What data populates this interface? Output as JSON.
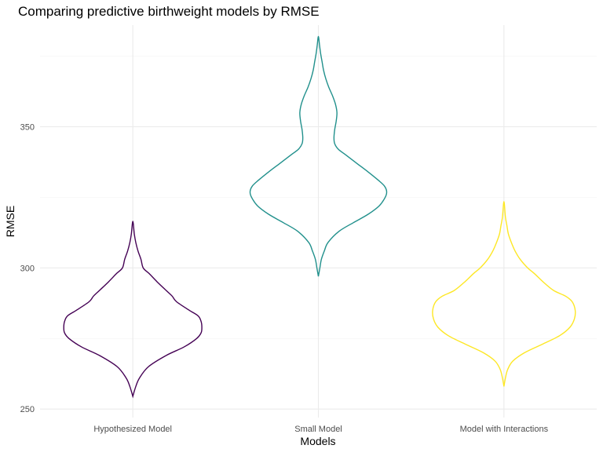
{
  "chart_data": {
    "type": "violin",
    "title": "Comparing predictive birthweight models by RMSE",
    "xlabel": "Models",
    "ylabel": "RMSE",
    "ylim": [
      247,
      386
    ],
    "y_ticks": [
      250,
      300,
      350
    ],
    "y_tick_labels": [
      "250",
      "300",
      "350"
    ],
    "y_minor_ticks": [
      275,
      325,
      375
    ],
    "grid": true,
    "legend": "none",
    "categories": [
      "Hypothesized Model",
      "Small Model",
      "Model with Interactions"
    ],
    "series": [
      {
        "category": "Hypothesized Model",
        "color": "#440154",
        "min": 254.5,
        "max": 316.5,
        "profile": [
          [
            254.5,
            0.0
          ],
          [
            258,
            0.04
          ],
          [
            261,
            0.09
          ],
          [
            265,
            0.21
          ],
          [
            269,
            0.45
          ],
          [
            272,
            0.69
          ],
          [
            275,
            0.86
          ],
          [
            277,
            0.92
          ],
          [
            279,
            0.93
          ],
          [
            281,
            0.92
          ],
          [
            283,
            0.88
          ],
          [
            285,
            0.76
          ],
          [
            288,
            0.59
          ],
          [
            290,
            0.53
          ],
          [
            292,
            0.45
          ],
          [
            295,
            0.33
          ],
          [
            298,
            0.22
          ],
          [
            300,
            0.14
          ],
          [
            303,
            0.11
          ],
          [
            306,
            0.07
          ],
          [
            309,
            0.04
          ],
          [
            312,
            0.02
          ],
          [
            316.5,
            0.0
          ]
        ]
      },
      {
        "category": "Small Model",
        "color": "#21908C",
        "min": 297,
        "max": 382,
        "profile": [
          [
            297,
            0.0
          ],
          [
            300,
            0.02
          ],
          [
            303,
            0.04
          ],
          [
            306,
            0.08
          ],
          [
            309,
            0.13
          ],
          [
            313,
            0.28
          ],
          [
            316,
            0.47
          ],
          [
            319,
            0.67
          ],
          [
            322,
            0.82
          ],
          [
            325,
            0.9
          ],
          [
            327,
            0.92
          ],
          [
            329,
            0.89
          ],
          [
            331,
            0.81
          ],
          [
            334,
            0.67
          ],
          [
            337,
            0.52
          ],
          [
            340,
            0.37
          ],
          [
            342,
            0.27
          ],
          [
            344,
            0.22
          ],
          [
            346,
            0.21
          ],
          [
            349,
            0.22
          ],
          [
            352,
            0.24
          ],
          [
            355,
            0.25
          ],
          [
            358,
            0.23
          ],
          [
            361,
            0.19
          ],
          [
            364,
            0.14
          ],
          [
            367,
            0.1
          ],
          [
            370,
            0.07
          ],
          [
            373,
            0.05
          ],
          [
            376,
            0.03
          ],
          [
            379,
            0.015
          ],
          [
            382,
            0.0
          ]
        ]
      },
      {
        "category": "Model with Interactions",
        "color": "#FDE725",
        "min": 258,
        "max": 323.5,
        "profile": [
          [
            258,
            0.0
          ],
          [
            261,
            0.02
          ],
          [
            264,
            0.05
          ],
          [
            267,
            0.12
          ],
          [
            270,
            0.28
          ],
          [
            273,
            0.52
          ],
          [
            276,
            0.75
          ],
          [
            279,
            0.89
          ],
          [
            282,
            0.95
          ],
          [
            285,
            0.96
          ],
          [
            288,
            0.92
          ],
          [
            290,
            0.83
          ],
          [
            292,
            0.67
          ],
          [
            295,
            0.53
          ],
          [
            298,
            0.41
          ],
          [
            300,
            0.32
          ],
          [
            303,
            0.22
          ],
          [
            306,
            0.15
          ],
          [
            309,
            0.1
          ],
          [
            312,
            0.06
          ],
          [
            315,
            0.04
          ],
          [
            318,
            0.02
          ],
          [
            323.5,
            0.0
          ]
        ]
      }
    ]
  }
}
